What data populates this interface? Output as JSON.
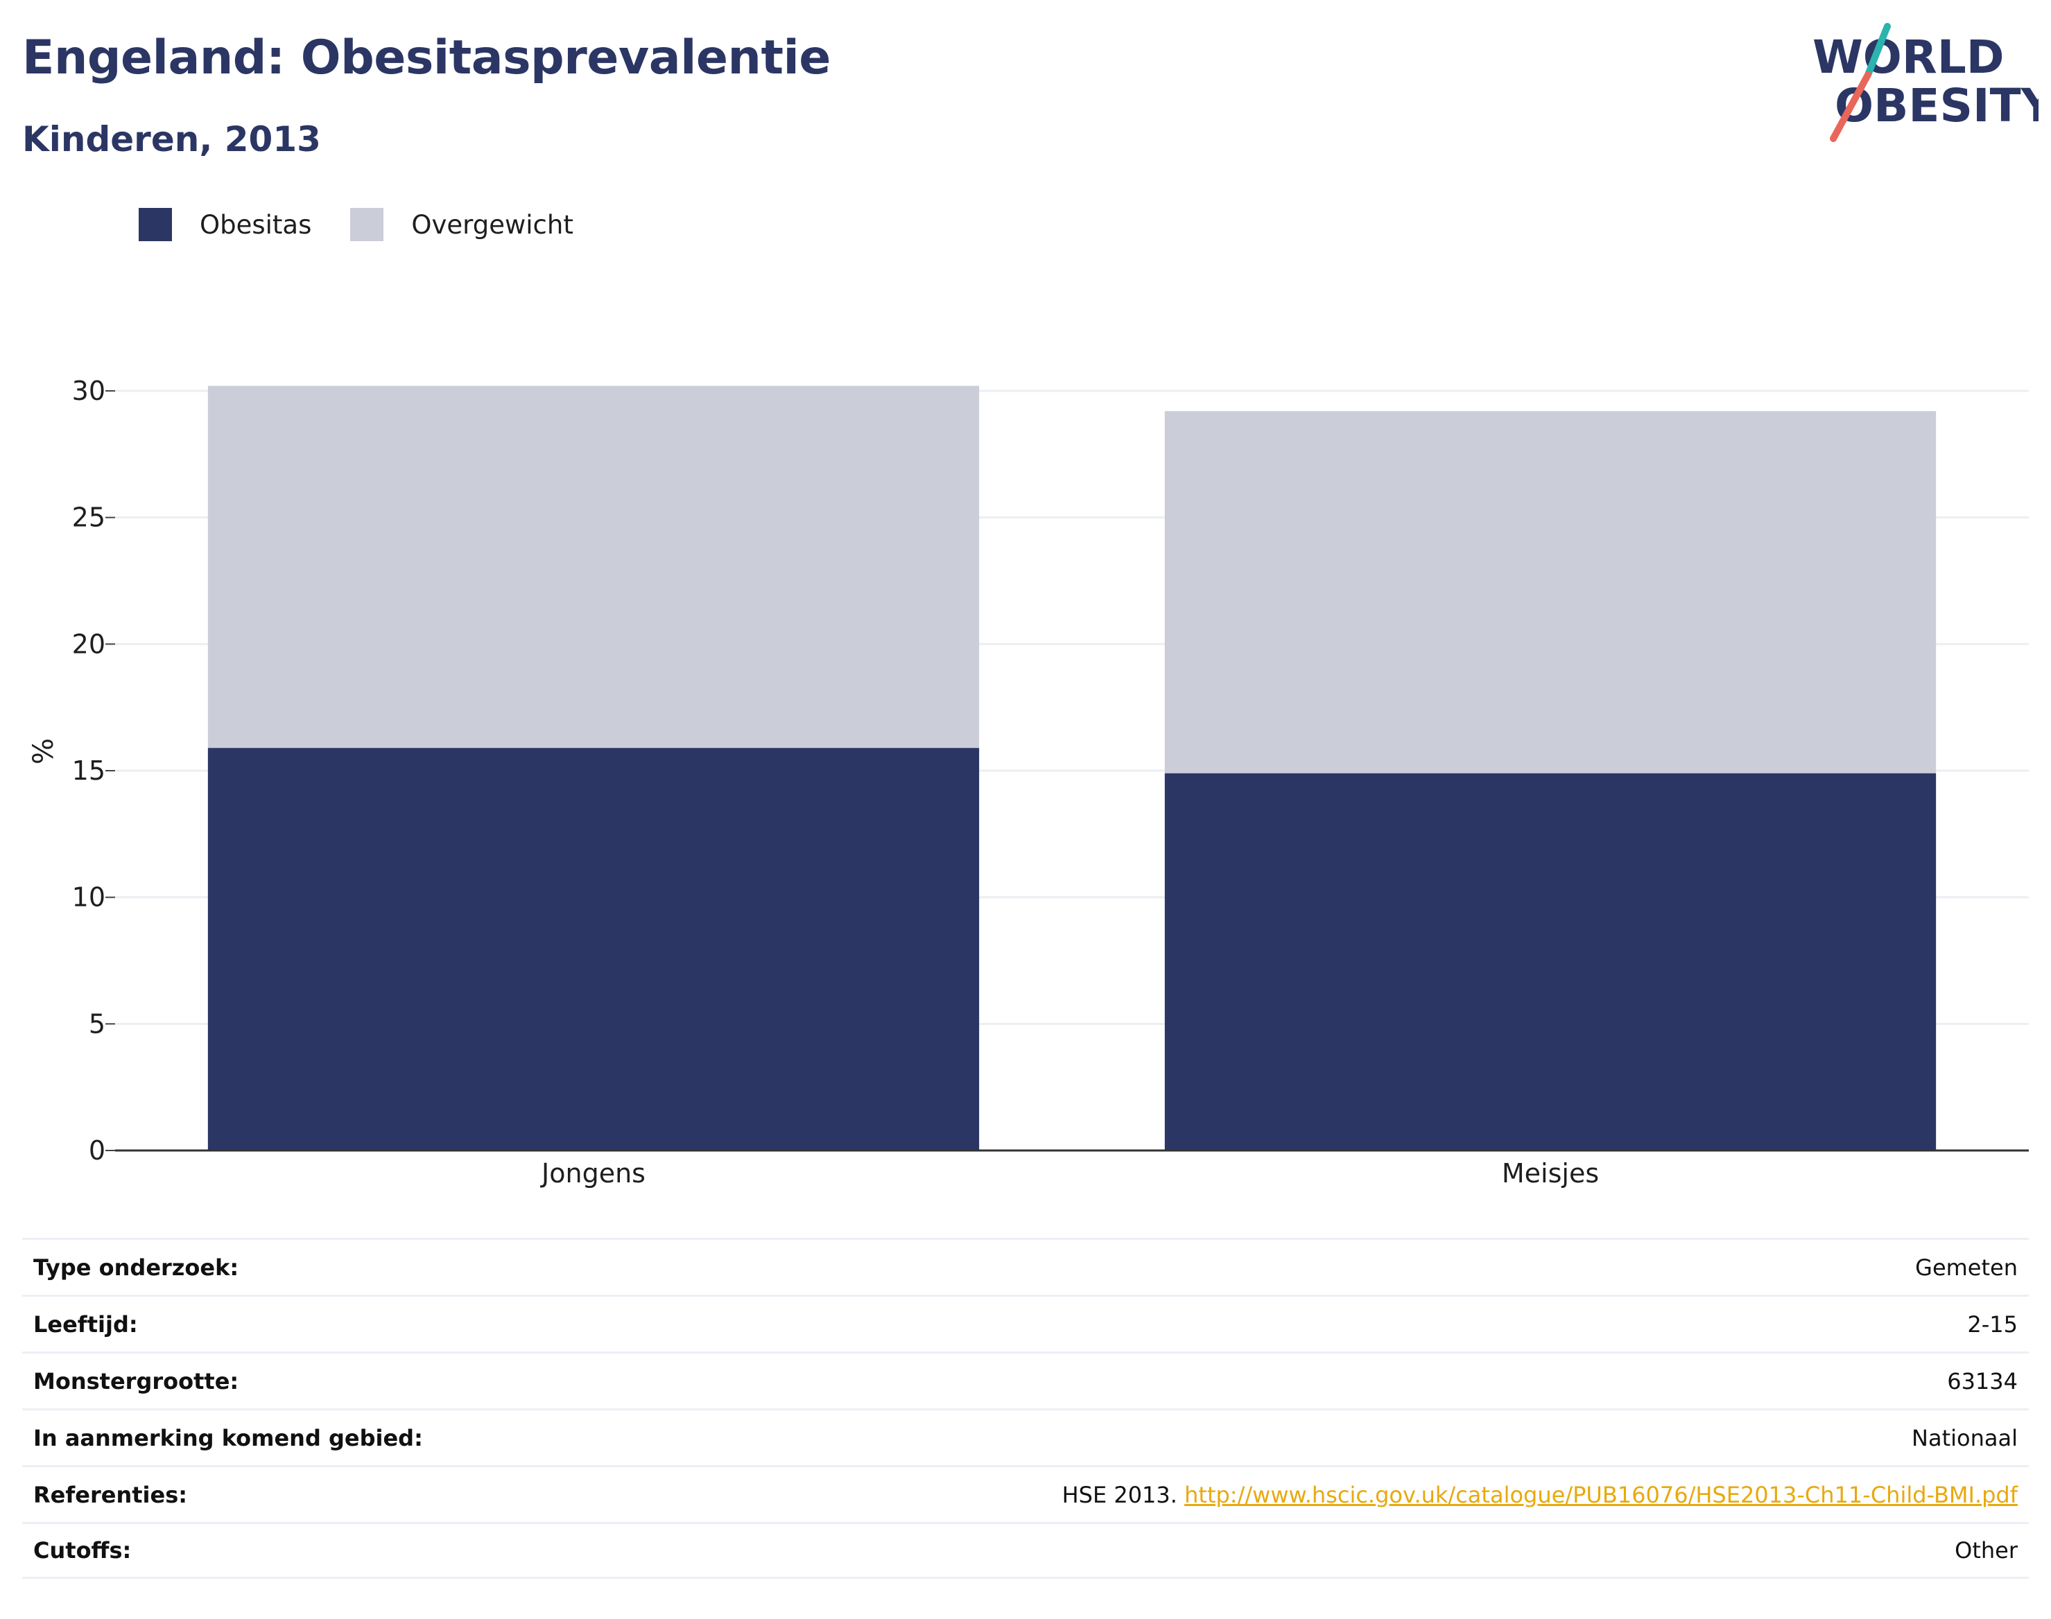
{
  "header": {
    "title": "Engeland: Obesitasprevalentie",
    "subtitle": "Kinderen, 2013"
  },
  "logo": {
    "line1": "WORLD",
    "line2": "OBESITY"
  },
  "colors": {
    "obesitas": "#2b3664",
    "overgewicht": "#cbcdd8",
    "accent_teal": "#2bb3ad",
    "accent_red": "#e8675a",
    "link": "#e8a90e"
  },
  "legend": [
    {
      "label": "Obesitas",
      "color": "#2b3664"
    },
    {
      "label": "Overgewicht",
      "color": "#cbcdd8"
    }
  ],
  "chart_data": {
    "type": "bar",
    "stacked": true,
    "categories": [
      "Jongens",
      "Meisjes"
    ],
    "series": [
      {
        "name": "Obesitas",
        "values": [
          15.9,
          14.9
        ],
        "color": "#2b3664"
      },
      {
        "name": "Overgewicht",
        "values": [
          14.3,
          14.3
        ],
        "color": "#cbcdd8"
      }
    ],
    "ylabel": "%",
    "ylim": [
      0,
      30
    ],
    "yticks": [
      0,
      5,
      10,
      15,
      20,
      25,
      30
    ],
    "grid": true,
    "legend_position": "top-left"
  },
  "info": [
    {
      "label": "Type onderzoek:",
      "value": "Gemeten"
    },
    {
      "label": "Leeftijd:",
      "value": "2-15"
    },
    {
      "label": "Monstergrootte:",
      "value": "63134"
    },
    {
      "label": "In aanmerking komend gebied:",
      "value": "Nationaal"
    },
    {
      "label": "Referenties:",
      "value": "HSE 2013. ",
      "link": "http://www.hscic.gov.uk/catalogue/PUB16076/HSE2013-Ch11-Child-BMI.pdf"
    },
    {
      "label": "Cutoffs:",
      "value": "Other"
    }
  ]
}
